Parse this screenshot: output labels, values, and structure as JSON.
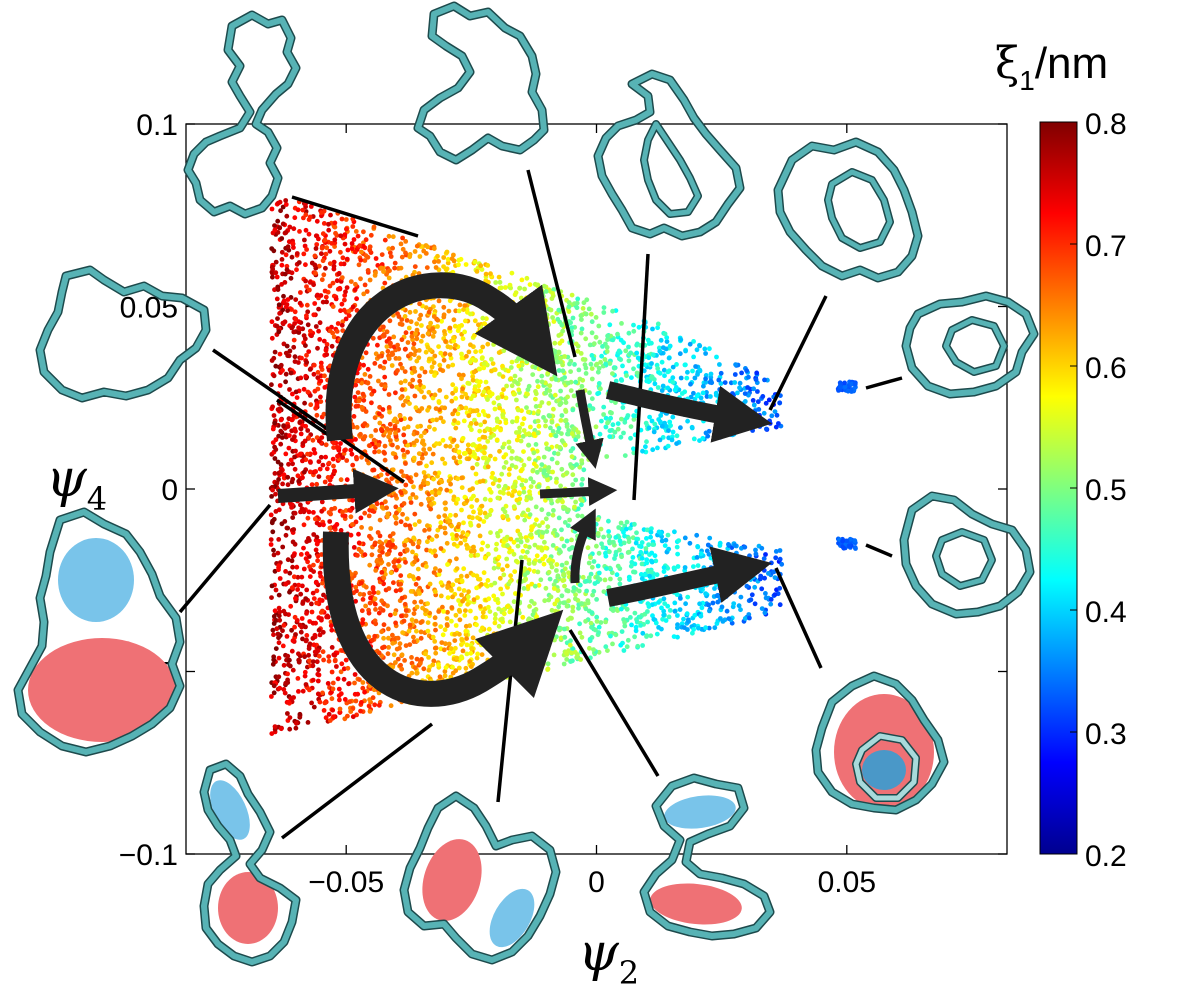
{
  "chart_data": {
    "type": "scatter",
    "xlabel": "ψ",
    "xlabel_sub": "2",
    "ylabel": "ψ",
    "ylabel_sub": "4",
    "xlim": [
      -0.082,
      0.082
    ],
    "ylim": [
      -0.1,
      0.1
    ],
    "x_ticks": [
      -0.05,
      0,
      0.05
    ],
    "x_tick_labels": [
      "−0.05",
      "0",
      "0.05"
    ],
    "y_ticks": [
      -0.1,
      -0.05,
      0,
      0.05,
      0.1
    ],
    "y_tick_labels": [
      "−0.1",
      "−0.05",
      "0",
      "0.05",
      "0.1"
    ],
    "colorbar": {
      "title": "ξ",
      "title_sub": "1",
      "title_unit": "/nm",
      "range": [
        0.2,
        0.8
      ],
      "ticks": [
        0.2,
        0.3,
        0.4,
        0.5,
        0.6,
        0.7,
        0.8
      ],
      "tick_labels": [
        "0.2",
        "0.3",
        "0.4",
        "0.5",
        "0.6",
        "0.7",
        "0.8"
      ],
      "colormap": "jet"
    },
    "clusters": [
      {
        "name": "main",
        "x_range": [
          -0.065,
          0.037
        ],
        "y_range": [
          -0.068,
          0.083
        ],
        "color_value_range": [
          0.32,
          0.77
        ]
      },
      {
        "name": "isolated-upper",
        "x": 0.05,
        "y": 0.028,
        "color_value": 0.33
      },
      {
        "name": "isolated-lower",
        "x": 0.05,
        "y": -0.015,
        "color_value": 0.33
      }
    ],
    "flow_arrows": [
      {
        "from": [
          -0.05,
          0.01
        ],
        "to": [
          -0.01,
          0.077
        ],
        "via": "upper-arc"
      },
      {
        "from": [
          -0.05,
          -0.025
        ],
        "to": [
          -0.01,
          -0.083
        ],
        "via": "lower-arc"
      },
      {
        "from": [
          -0.062,
          -0.002
        ],
        "to": [
          -0.038,
          0.0
        ]
      },
      {
        "from": [
          -0.011,
          -0.002
        ],
        "to": [
          0.004,
          0.0
        ]
      },
      {
        "from": [
          -0.004,
          0.017
        ],
        "to": [
          0.0,
          -0.004
        ]
      },
      {
        "from": [
          -0.004,
          -0.052
        ],
        "to": [
          -0.001,
          -0.025
        ]
      },
      {
        "from": [
          0.003,
          0.022
        ],
        "to": [
          0.032,
          0.018
        ]
      },
      {
        "from": [
          0.003,
          -0.062
        ],
        "to": [
          0.032,
          -0.042
        ]
      }
    ],
    "ring_conformations": [
      {
        "shape": "figure-eight",
        "link_to": [
          -0.035,
          0.07
        ]
      },
      {
        "shape": "open-loop",
        "link_to": [
          -0.03,
          0.0
        ]
      },
      {
        "shape": "open-loop",
        "link_to": [
          -0.008,
          0.035
        ]
      },
      {
        "shape": "folded-loop",
        "link_to": [
          0.008,
          0.025
        ]
      },
      {
        "shape": "double-loop",
        "link_to": [
          0.032,
          0.018
        ]
      },
      {
        "shape": "double-loop",
        "link_to": [
          0.052,
          0.028
        ]
      },
      {
        "shape": "double-loop",
        "link_to": [
          0.052,
          -0.016
        ]
      },
      {
        "shape": "knotted-loop",
        "link_to": [
          0.033,
          -0.018
        ],
        "blobs": [
          "red",
          "blue"
        ]
      },
      {
        "shape": "loop-with-blobs",
        "link_to": [
          -0.065,
          -0.005
        ],
        "blobs": [
          "blue",
          "red"
        ]
      },
      {
        "shape": "loop-with-blobs",
        "link_to": [
          -0.032,
          -0.065
        ],
        "blobs": [
          "blue",
          "red"
        ]
      },
      {
        "shape": "loop-with-blobs",
        "link_to": [
          -0.016,
          -0.07
        ],
        "blobs": [
          "red",
          "blue"
        ]
      },
      {
        "shape": "loop-with-blobs",
        "link_to": [
          -0.004,
          -0.06
        ],
        "blobs": [
          "blue",
          "red"
        ]
      }
    ]
  }
}
